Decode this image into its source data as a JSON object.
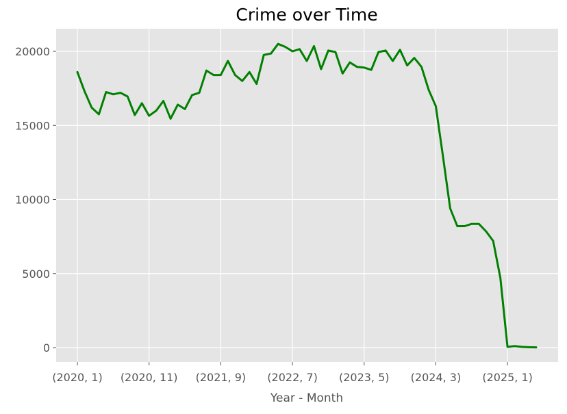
{
  "chart_data": {
    "type": "line",
    "title": "Crime over Time",
    "xlabel": "Year - Month",
    "ylabel": "",
    "grid": true,
    "ylim": [
      -1000,
      21500
    ],
    "yticks": [
      0,
      5000,
      10000,
      15000,
      20000
    ],
    "xtick_labels": [
      "(2020, 1)",
      "(2020, 11)",
      "(2021, 9)",
      "(2022, 7)",
      "(2023, 5)",
      "(2024, 3)",
      "(2025, 1)"
    ],
    "xtick_positions": [
      0,
      10,
      20,
      30,
      40,
      50,
      60
    ],
    "series": [
      {
        "color": "#008000",
        "x": [
          0,
          1,
          2,
          3,
          4,
          5,
          6,
          7,
          8,
          9,
          10,
          11,
          12,
          13,
          14,
          15,
          16,
          17,
          18,
          19,
          20,
          21,
          22,
          23,
          24,
          25,
          26,
          27,
          28,
          29,
          30,
          31,
          32,
          33,
          34,
          35,
          36,
          37,
          38,
          39,
          40,
          41,
          42,
          43,
          44,
          45,
          46,
          47,
          48,
          49,
          50,
          51,
          52,
          53,
          54,
          55,
          56,
          57,
          58,
          59,
          60,
          61,
          62,
          63,
          64
        ],
        "values": [
          18600,
          17300,
          16200,
          15750,
          17250,
          17100,
          17200,
          16950,
          15700,
          16500,
          15650,
          16000,
          16650,
          15450,
          16400,
          16100,
          17050,
          17200,
          18700,
          18400,
          18400,
          19350,
          18400,
          18000,
          18600,
          17800,
          19750,
          19850,
          20500,
          20300,
          20000,
          20150,
          19350,
          20350,
          18800,
          20050,
          19950,
          18500,
          19250,
          18950,
          18900,
          18750,
          19950,
          20050,
          19350,
          20100,
          19050,
          19550,
          18950,
          17400,
          16300,
          12900,
          9400,
          8200,
          8200,
          8350,
          8350,
          7850,
          7200,
          4700,
          50,
          100,
          50,
          30,
          20
        ]
      }
    ]
  }
}
